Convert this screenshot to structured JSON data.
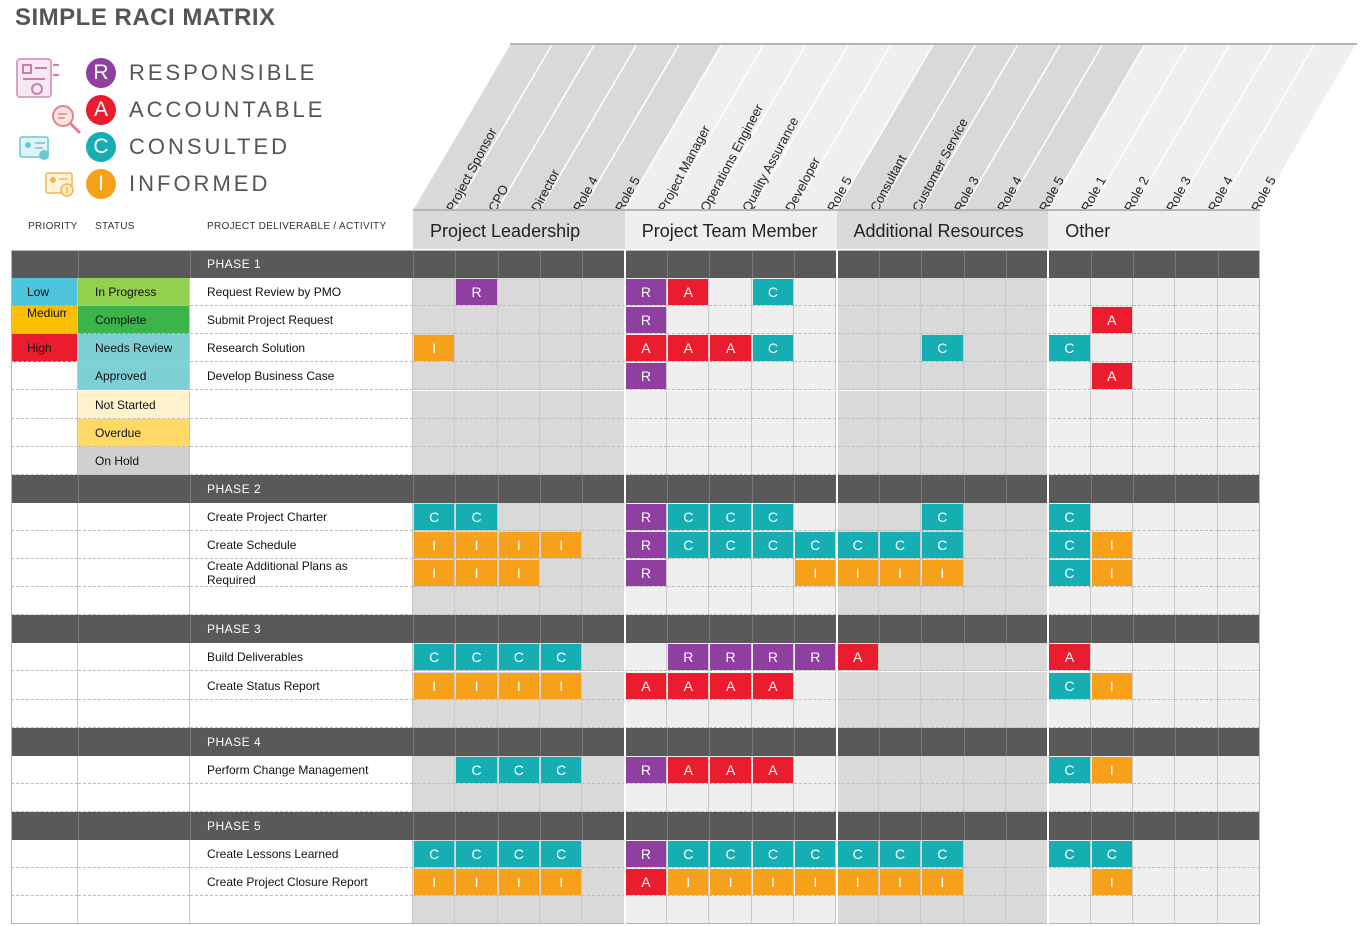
{
  "title": "SIMPLE RACI MATRIX",
  "legend": [
    {
      "letter": "R",
      "label": "RESPONSIBLE",
      "color": "#8e3fa0"
    },
    {
      "letter": "A",
      "label": "ACCOUNTABLE",
      "color": "#ea1c2d"
    },
    {
      "letter": "C",
      "label": "CONSULTED",
      "color": "#15aeb3"
    },
    {
      "letter": "I",
      "label": "INFORMED",
      "color": "#f7a11a"
    }
  ],
  "icons": [
    "checklist-document-icon",
    "search-document-icon",
    "id-card-icon",
    "upload-card-icon"
  ],
  "column_headers": {
    "priority": "PRIORITY",
    "status": "STATUS",
    "deliverable": "PROJECT DELIVERABLE / ACTIVITY"
  },
  "groups": [
    "Project Leadership",
    "Project Team Member",
    "Additional Resources",
    "Other"
  ],
  "roles": [
    "Project Sponsor",
    "CPO",
    "Director",
    "Role 4",
    "Role 5",
    "Project Manager",
    "Operations Engineer",
    "Quality Assurance",
    "Developer",
    "Role 5",
    "Consultant",
    "Customer Service",
    "Role 3",
    "Role 4",
    "Role 5",
    "Role 1",
    "Role 2",
    "Role 3",
    "Role 4",
    "Role 5"
  ],
  "colors": {
    "R": "#8e3fa0",
    "A": "#ea1c2d",
    "C": "#15aeb3",
    "I": "#f7a11a",
    "phase_bar": "#595959"
  },
  "priority_colors": {
    "Low": "#4ec3dc",
    "Medium": "#fdc000",
    "High": "#ea1c2d"
  },
  "status_colors": {
    "In Progress": "#92d050",
    "Complete": "#3cb44b",
    "Needs Review": "#7fd0d5",
    "Approved": "#7fd0d5",
    "Not Started": "#fff2cc",
    "Overdue": "#ffd966",
    "On Hold": "#d0d0d0"
  },
  "rows": [
    {
      "phase": "PHASE 1"
    },
    {
      "priority": "Low",
      "status": "In Progress",
      "activity": "Request Review by PMO",
      "cells": [
        "",
        "R",
        "",
        "",
        "",
        "R",
        "A",
        "",
        "C",
        "",
        "",
        "",
        "",
        "",
        "",
        "",
        "",
        "",
        "",
        ""
      ]
    },
    {
      "priority": "Medium",
      "status": "Complete",
      "activity": "Submit Project Request",
      "cells": [
        "",
        "",
        "",
        "",
        "",
        "R",
        "",
        "",
        "",
        "",
        "",
        "",
        "",
        "",
        "",
        "",
        "A",
        "",
        "",
        ""
      ]
    },
    {
      "priority": "High",
      "status": "Needs Review",
      "activity": "Research Solution",
      "cells": [
        "I",
        "",
        "",
        "",
        "",
        "A",
        "A",
        "A",
        "C",
        "",
        "",
        "",
        "C",
        "",
        "",
        "C",
        "",
        "",
        "",
        ""
      ]
    },
    {
      "priority": "",
      "status": "Approved",
      "activity": "Develop Business Case",
      "cells": [
        "",
        "",
        "",
        "",
        "",
        "R",
        "",
        "",
        "",
        "",
        "",
        "",
        "",
        "",
        "",
        "",
        "A",
        "",
        "",
        ""
      ]
    },
    {
      "priority": "",
      "status": "Not Started",
      "activity": "",
      "cells": []
    },
    {
      "priority": "",
      "status": "Overdue",
      "activity": "",
      "cells": []
    },
    {
      "priority": "",
      "status": "On Hold",
      "activity": "",
      "cells": []
    },
    {
      "phase": "PHASE 2"
    },
    {
      "priority": "",
      "status": "",
      "activity": "Create Project Charter",
      "cells": [
        "C",
        "C",
        "",
        "",
        "",
        "R",
        "C",
        "C",
        "C",
        "",
        "",
        "",
        "C",
        "",
        "",
        "C",
        "",
        "",
        "",
        ""
      ]
    },
    {
      "priority": "",
      "status": "",
      "activity": "Create Schedule",
      "cells": [
        "I",
        "I",
        "I",
        "I",
        "",
        "R",
        "C",
        "C",
        "C",
        "C",
        "C",
        "C",
        "C",
        "",
        "",
        "C",
        "I",
        "",
        "",
        ""
      ]
    },
    {
      "priority": "",
      "status": "",
      "activity": "Create Additional Plans as Required",
      "cells": [
        "I",
        "I",
        "I",
        "",
        "",
        "R",
        "",
        "",
        "",
        "I",
        "I",
        "I",
        "I",
        "",
        "",
        "C",
        "I",
        "",
        "",
        ""
      ]
    },
    {
      "priority": "",
      "status": "",
      "activity": "",
      "cells": []
    },
    {
      "phase": "PHASE 3"
    },
    {
      "priority": "",
      "status": "",
      "activity": "Build Deliverables",
      "cells": [
        "C",
        "C",
        "C",
        "C",
        "",
        "",
        "R",
        "R",
        "R",
        "R",
        "A",
        "",
        "",
        "",
        "",
        "A",
        "",
        "",
        "",
        ""
      ]
    },
    {
      "priority": "",
      "status": "",
      "activity": "Create Status Report",
      "cells": [
        "I",
        "I",
        "I",
        "I",
        "",
        "A",
        "A",
        "A",
        "A",
        "",
        "",
        "",
        "",
        "",
        "",
        "C",
        "I",
        "",
        "",
        ""
      ]
    },
    {
      "priority": "",
      "status": "",
      "activity": "",
      "cells": []
    },
    {
      "phase": "PHASE 4"
    },
    {
      "priority": "",
      "status": "",
      "activity": "Perform Change Management",
      "cells": [
        "",
        "C",
        "C",
        "C",
        "",
        "R",
        "A",
        "A",
        "A",
        "",
        "",
        "",
        "",
        "",
        "",
        "C",
        "I",
        "",
        "",
        ""
      ]
    },
    {
      "priority": "",
      "status": "",
      "activity": "",
      "cells": []
    },
    {
      "phase": "PHASE 5"
    },
    {
      "priority": "",
      "status": "",
      "activity": "Create Lessons Learned",
      "cells": [
        "C",
        "C",
        "C",
        "C",
        "",
        "R",
        "C",
        "C",
        "C",
        "C",
        "C",
        "C",
        "C",
        "",
        "",
        "C",
        "C",
        "",
        "",
        ""
      ]
    },
    {
      "priority": "",
      "status": "",
      "activity": "Create Project Closure Report",
      "cells": [
        "I",
        "I",
        "I",
        "I",
        "",
        "A",
        "I",
        "I",
        "I",
        "I",
        "I",
        "I",
        "I",
        "",
        "",
        "",
        "I",
        "",
        "",
        ""
      ]
    },
    {
      "priority": "",
      "status": "",
      "activity": "",
      "cells": []
    }
  ]
}
